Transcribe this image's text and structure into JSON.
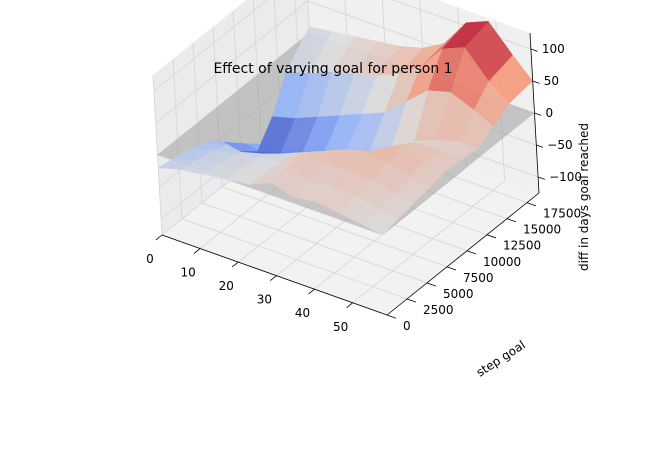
{
  "chart_data": {
    "type": "surface3d",
    "title": "Effect of varying goal for person 1",
    "xlabel": "",
    "ylabel": "step goal",
    "zlabel": "diff in days goal reached",
    "x_ticks": [
      "0",
      "10",
      "20",
      "30",
      "40",
      "50"
    ],
    "y_ticks": [
      "0",
      "2500",
      "5000",
      "7500",
      "10000",
      "12500",
      "15000",
      "17500"
    ],
    "z_ticks": [
      "−100",
      "−50",
      "0",
      "50",
      "100"
    ],
    "xlim": [
      0,
      59
    ],
    "ylim": [
      0,
      19000
    ],
    "zlim": [
      -125,
      125
    ],
    "colormap": "coolwarm",
    "reference_plane": {
      "z": 0,
      "color": "#a0a0a0"
    },
    "x_grid": [
      0,
      6,
      12,
      18,
      24,
      30,
      36,
      42,
      48,
      54,
      59
    ],
    "y_grid": [
      0,
      2000,
      4000,
      6000,
      8000,
      10000,
      12000,
      14000,
      16000,
      19000
    ],
    "z": [
      [
        -20,
        -25,
        -30,
        -40,
        -60,
        -95,
        -115,
        -80,
        -30,
        10
      ],
      [
        -10,
        -15,
        -20,
        -30,
        -50,
        -85,
        -105,
        -70,
        -20,
        15
      ],
      [
        -5,
        -8,
        -12,
        -20,
        -38,
        -70,
        -90,
        -55,
        -5,
        20
      ],
      [
        0,
        -2,
        -5,
        -10,
        -25,
        -55,
        -75,
        -40,
        5,
        25
      ],
      [
        5,
        4,
        0,
        -5,
        -15,
        -40,
        -60,
        -25,
        15,
        30
      ],
      [
        20,
        25,
        30,
        28,
        10,
        -25,
        -50,
        -10,
        30,
        40
      ],
      [
        10,
        15,
        20,
        30,
        25,
        -5,
        -30,
        20,
        55,
        60
      ],
      [
        15,
        20,
        25,
        35,
        40,
        10,
        -10,
        50,
        95,
        105
      ],
      [
        10,
        18,
        22,
        30,
        35,
        20,
        5,
        60,
        110,
        120
      ],
      [
        5,
        10,
        15,
        20,
        25,
        20,
        15,
        45,
        70,
        80
      ],
      [
        0,
        5,
        10,
        15,
        20,
        18,
        15,
        30,
        45,
        50
      ]
    ]
  }
}
